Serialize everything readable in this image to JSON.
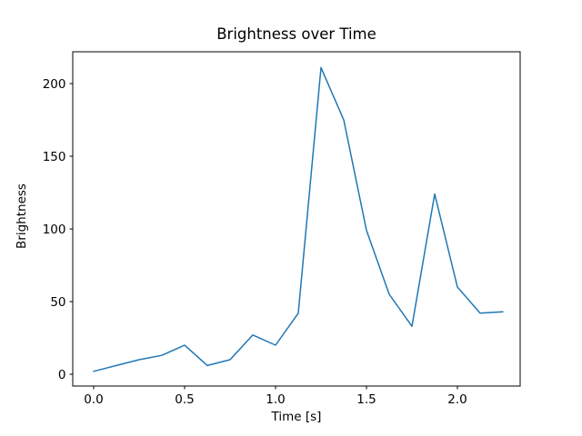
{
  "figure": {
    "background_color": "#ffffff",
    "text_color": "#000000",
    "spine_color": "#000000"
  },
  "chart_data": {
    "type": "line",
    "title": "Brightness over Time",
    "xlabel": "Time [s]",
    "ylabel": "Brightness",
    "legend": null,
    "grid": false,
    "line_color": "#1f77b4",
    "line_width": 1.5,
    "x": [
      0.0,
      0.125,
      0.25,
      0.375,
      0.5,
      0.625,
      0.75,
      0.875,
      1.0,
      1.125,
      1.25,
      1.375,
      1.5,
      1.625,
      1.75,
      1.875,
      2.0,
      2.125,
      2.25
    ],
    "y": [
      2,
      6,
      10,
      13,
      20,
      6,
      10,
      27,
      20,
      42,
      211,
      175,
      99,
      55,
      33,
      124,
      60,
      42,
      43
    ],
    "xticks": [
      0.0,
      0.5,
      1.0,
      1.5,
      2.0
    ],
    "xtick_labels": [
      "0.0",
      "0.5",
      "1.0",
      "1.5",
      "2.0"
    ],
    "yticks": [
      0,
      50,
      100,
      150,
      200
    ],
    "ytick_labels": [
      "0",
      "50",
      "100",
      "150",
      "200"
    ],
    "xlim": [
      -0.115,
      2.345
    ],
    "ylim": [
      -8.1,
      221.9
    ]
  }
}
